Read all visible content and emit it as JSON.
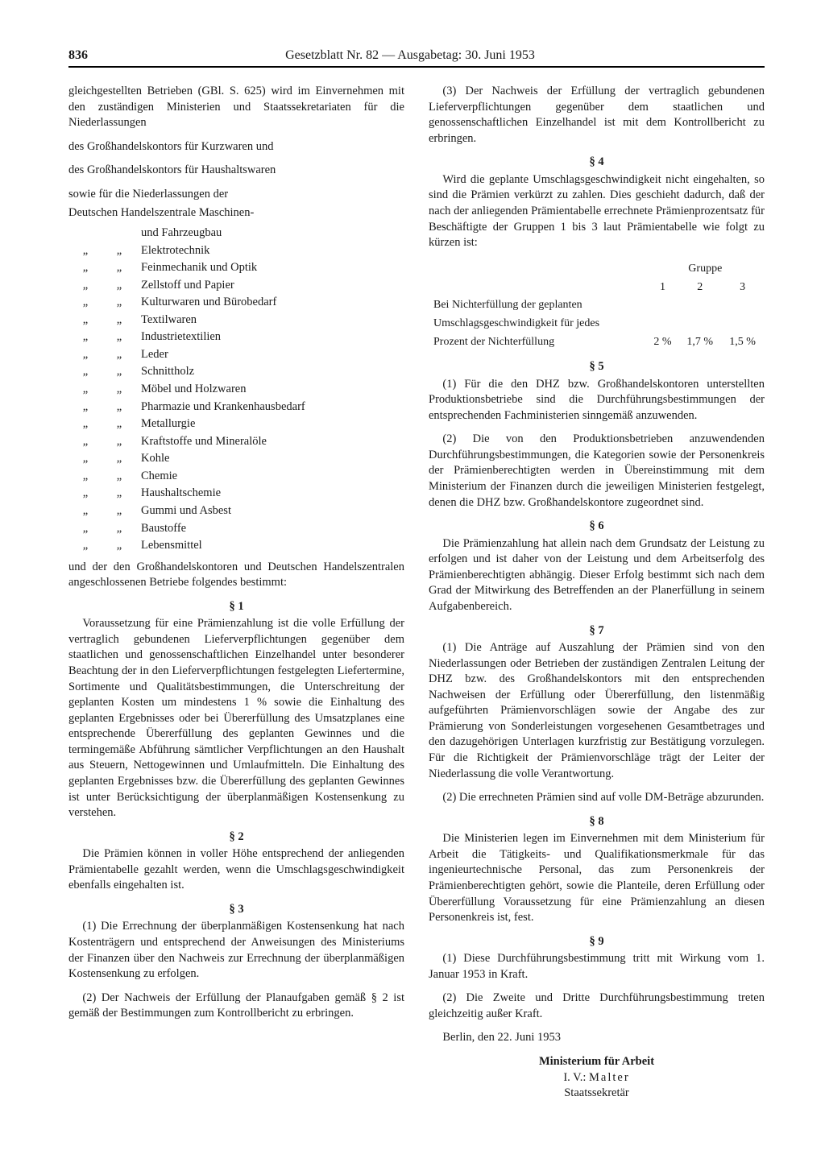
{
  "page_number": "836",
  "header_title": "Gesetzblatt Nr. 82 — Ausgabetag: 30. Juni 1953",
  "left": {
    "p1": "gleichgestellten Betrieben (GBl. S. 625) wird im Einvernehmen mit den zuständigen Ministerien und Staatssekretariaten für die Niederlassungen",
    "p2": "des Großhandelskontors für Kurzwaren und",
    "p3": "des Großhandelskontors für Haushaltswaren",
    "p4": "sowie für die Niederlassungen der",
    "p5": "Deutschen Handelszentrale Maschinen-",
    "list_first_right": "und Fahrzeugbau",
    "list": [
      "Elektrotechnik",
      "Feinmechanik und Optik",
      "Zellstoff und Papier",
      "Kulturwaren und Bürobedarf",
      "Textilwaren",
      "Industrietextilien",
      "Leder",
      "Schnittholz",
      "Möbel und Holzwaren",
      "Pharmazie und Krankenhausbedarf",
      "Metallurgie",
      "Kraftstoffe und Mineralöle",
      "Kohle",
      "Chemie",
      "Haushaltschemie",
      "Gummi und Asbest",
      "Baustoffe",
      "Lebensmittel"
    ],
    "p6": "und der den Großhandelskontoren und Deutschen Handelszentralen angeschlossenen Betriebe folgendes bestimmt:",
    "s1_h": "§ 1",
    "s1": "Voraussetzung für eine Prämienzahlung ist die volle Erfüllung der vertraglich gebundenen Lieferverpflichtungen gegenüber dem staatlichen und genossenschaftlichen Einzelhandel unter besonderer Beachtung der in den Lieferverpflichtungen festgelegten Liefertermine, Sortimente und Qualitätsbestimmungen, die Unterschreitung der geplanten Kosten um mindestens 1 % sowie die Einhaltung des geplanten Ergebnisses oder bei Übererfüllung des Umsatzplanes eine entsprechende Übererfüllung des geplanten Gewinnes und die termingemäße Abführung sämtlicher Verpflichtungen an den Haushalt aus Steuern, Nettogewinnen und Umlaufmitteln. Die Einhaltung des geplanten Ergebnisses bzw. die Übererfüllung des geplanten Gewinnes ist unter Berücksichtigung der überplanmäßigen Kostensenkung zu verstehen.",
    "s2_h": "§ 2",
    "s2": "Die Prämien können in voller Höhe entsprechend der anliegenden Prämientabelle gezahlt werden, wenn die Umschlagsgeschwindigkeit ebenfalls eingehalten ist.",
    "s3_h": "§ 3",
    "s3_1": "(1) Die Errechnung der überplanmäßigen Kostensenkung hat nach Kostenträgern und entsprechend der Anweisungen des Ministeriums der Finanzen über den Nachweis zur Errechnung der überplanmäßigen Kostensenkung zu erfolgen.",
    "s3_2": "(2) Der Nachweis der Erfüllung der Planaufgaben gemäß § 2 ist gemäß der Bestimmungen zum Kontrollbericht zu erbringen."
  },
  "right": {
    "s3_3": "(3) Der Nachweis der Erfüllung der vertraglich gebundenen Lieferverpflichtungen gegenüber dem staatlichen und genossenschaftlichen Einzelhandel ist mit dem Kontrollbericht zu erbringen.",
    "s4_h": "§ 4",
    "s4": "Wird die geplante Umschlagsgeschwindigkeit nicht eingehalten, so sind die Prämien verkürzt zu zahlen. Dies geschieht dadurch, daß der nach der anliegenden Prämientabelle errechnete Prämienprozentsatz für Beschäftigte der Gruppen 1 bis 3 laut Prämientabelle wie folgt zu kürzen ist:",
    "gruppe_label": "Gruppe",
    "gruppe_cols": [
      "1",
      "2",
      "3"
    ],
    "gruppe_row_label_1": "Bei Nichterfüllung der geplanten",
    "gruppe_row_label_2": "Umschlagsgeschwindigkeit für jedes",
    "gruppe_row_label_3": "Prozent der Nichterfüllung",
    "gruppe_values": [
      "2 %",
      "1,7 %",
      "1,5 %"
    ],
    "s5_h": "§ 5",
    "s5_1": "(1) Für die den DHZ bzw. Großhandelskontoren unterstellten Produktionsbetriebe sind die Durchführungsbestimmungen der entsprechenden Fachministerien sinngemäß anzuwenden.",
    "s5_2": "(2) Die von den Produktionsbetrieben anzuwendenden Durchführungsbestimmungen, die Kategorien sowie der Personenkreis der Prämienberechtigten werden in Übereinstimmung mit dem Ministerium der Finanzen durch die jeweiligen Ministerien festgelegt, denen die DHZ bzw. Großhandelskontore zugeordnet sind.",
    "s6_h": "§ 6",
    "s6": "Die Prämienzahlung hat allein nach dem Grundsatz der Leistung zu erfolgen und ist daher von der Leistung und dem Arbeitserfolg des Prämienberechtigten abhängig. Dieser Erfolg bestimmt sich nach dem Grad der Mitwirkung des Betreffenden an der Planerfüllung in seinem Aufgabenbereich.",
    "s7_h": "§ 7",
    "s7_1": "(1) Die Anträge auf Auszahlung der Prämien sind von den Niederlassungen oder Betrieben der zuständigen Zentralen Leitung der DHZ bzw. des Großhandelskontors mit den entsprechenden Nachweisen der Erfüllung oder Übererfüllung, den listenmäßig aufgeführten Prämienvorschlägen sowie der Angabe des zur Prämierung von Sonderleistungen vorgesehenen Gesamtbetrages und den dazugehörigen Unterlagen kurzfristig zur Bestätigung vorzulegen. Für die Richtigkeit der Prämienvorschläge trägt der Leiter der Niederlassung die volle Verantwortung.",
    "s7_2": "(2) Die errechneten Prämien sind auf volle DM-Beträge abzurunden.",
    "s8_h": "§ 8",
    "s8": "Die Ministerien legen im Einvernehmen mit dem Ministerium für Arbeit die Tätigkeits- und Qualifikationsmerkmale für das ingenieurtechnische Personal, das zum Personenkreis der Prämienberechtigten gehört, sowie die Planteile, deren Erfüllung oder Übererfüllung Voraussetzung für eine Prämienzahlung an diesen Personenkreis ist, fest.",
    "s9_h": "§ 9",
    "s9_1": "(1) Diese Durchführungsbestimmung tritt mit Wirkung vom 1. Januar 1953 in Kraft.",
    "s9_2": "(2) Die Zweite und Dritte Durchführungsbestimmung treten gleichzeitig außer Kraft.",
    "date_line": "Berlin, den 22. Juni 1953",
    "sig_1": "Ministerium für Arbeit",
    "sig_2a": "I. V.: ",
    "sig_2b": "Malter",
    "sig_3": "Staatssekretär"
  },
  "ditto": "„"
}
